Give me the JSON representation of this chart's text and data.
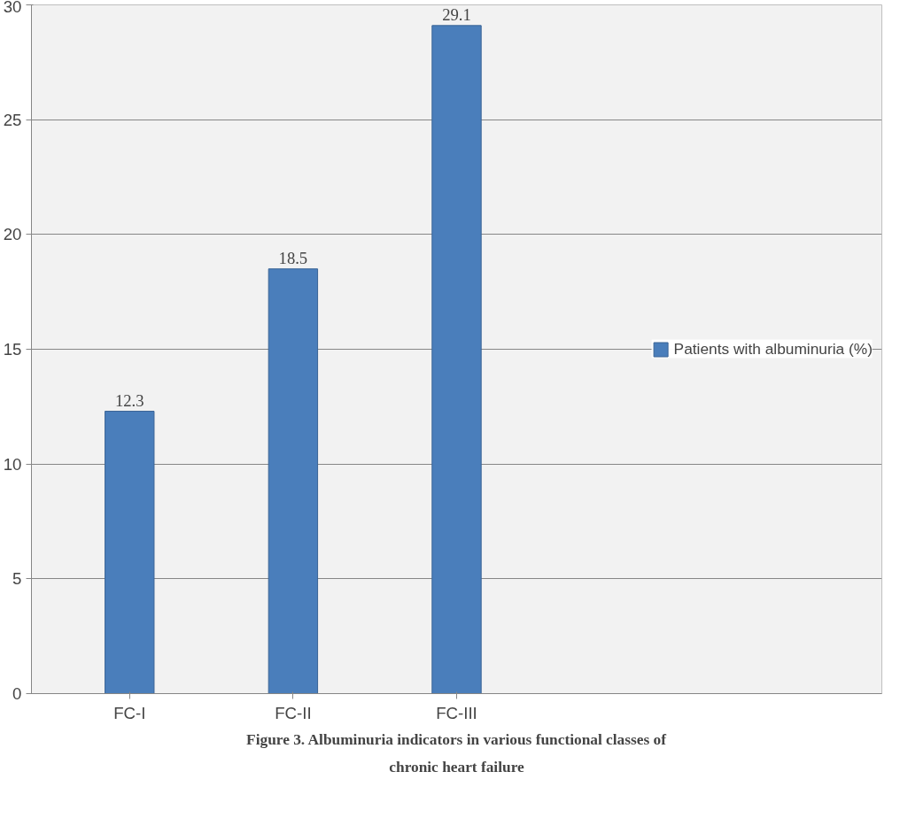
{
  "chart_data": {
    "type": "bar",
    "categories": [
      "FC-I",
      "FC-II",
      "FC-III"
    ],
    "series": [
      {
        "name": "Patients with albuminuria (%)",
        "color": "#4a7ebb",
        "values": [
          12.3,
          18.5,
          29.1
        ]
      }
    ],
    "ylim": [
      0,
      30
    ],
    "yticks": [
      0,
      5,
      10,
      15,
      20,
      25,
      30
    ],
    "grid": "y",
    "legend": "right",
    "data_labels": true,
    "annotations": [
      "Figure 3. Albuminuria indicators in various functional classes of chronic heart failure"
    ]
  }
}
